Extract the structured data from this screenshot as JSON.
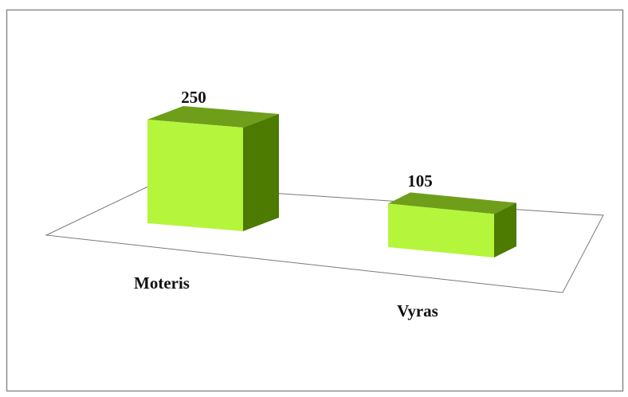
{
  "chart_data": {
    "type": "bar3d",
    "categories": [
      "Moteris",
      "Vyras"
    ],
    "values": [
      250,
      105
    ],
    "color": "#b5f53c"
  }
}
